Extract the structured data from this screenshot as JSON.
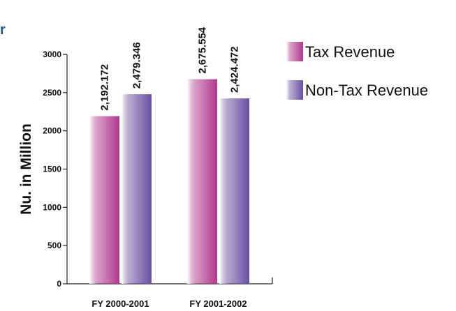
{
  "corner_fragment": "r",
  "colors": {
    "tax_revenue": "#b0388e",
    "non_tax_revenue": "#6a4fa2",
    "corner_text": "#1e5a8c",
    "axis": "#222222"
  },
  "chart_data": {
    "type": "bar",
    "categories": [
      "FY 2000-2001",
      "FY 2001-2002"
    ],
    "series": [
      {
        "name": "Tax Revenue",
        "values": [
          2192.172,
          2675.554
        ],
        "labels": [
          "2,192.172",
          "2,675.554"
        ]
      },
      {
        "name": "Non-Tax Revenue",
        "values": [
          2479.346,
          2424.472
        ],
        "labels": [
          "2,479.346",
          "2,424.472"
        ]
      }
    ],
    "title": "",
    "xlabel": "",
    "ylabel": "Nu. in Million",
    "ylim": [
      0,
      3000
    ],
    "yticks": [
      0,
      500,
      1000,
      1500,
      2000,
      2500,
      3000
    ],
    "grid": false,
    "legend": "right"
  }
}
